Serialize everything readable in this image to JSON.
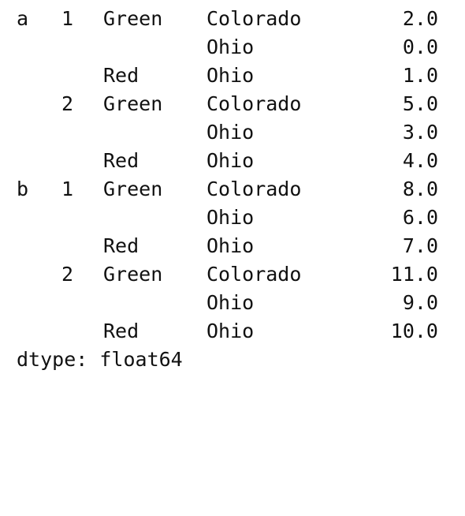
{
  "series": {
    "rows": [
      {
        "l0": "a",
        "l1": "1",
        "l2": "Green",
        "l3": "Colorado",
        "value": "2.0"
      },
      {
        "l0": "",
        "l1": "",
        "l2": "",
        "l3": "Ohio",
        "value": "0.0"
      },
      {
        "l0": "",
        "l1": "",
        "l2": "Red",
        "l3": "Ohio",
        "value": "1.0"
      },
      {
        "l0": "",
        "l1": "2",
        "l2": "Green",
        "l3": "Colorado",
        "value": "5.0"
      },
      {
        "l0": "",
        "l1": "",
        "l2": "",
        "l3": "Ohio",
        "value": "3.0"
      },
      {
        "l0": "",
        "l1": "",
        "l2": "Red",
        "l3": "Ohio",
        "value": "4.0"
      },
      {
        "l0": "b",
        "l1": "1",
        "l2": "Green",
        "l3": "Colorado",
        "value": "8.0"
      },
      {
        "l0": "",
        "l1": "",
        "l2": "",
        "l3": "Ohio",
        "value": "6.0"
      },
      {
        "l0": "",
        "l1": "",
        "l2": "Red",
        "l3": "Ohio",
        "value": "7.0"
      },
      {
        "l0": "",
        "l1": "2",
        "l2": "Green",
        "l3": "Colorado",
        "value": "11.0"
      },
      {
        "l0": "",
        "l1": "",
        "l2": "",
        "l3": "Ohio",
        "value": "9.0"
      },
      {
        "l0": "",
        "l1": "",
        "l2": "Red",
        "l3": "Ohio",
        "value": "10.0"
      }
    ],
    "dtype": "dtype: float64"
  }
}
